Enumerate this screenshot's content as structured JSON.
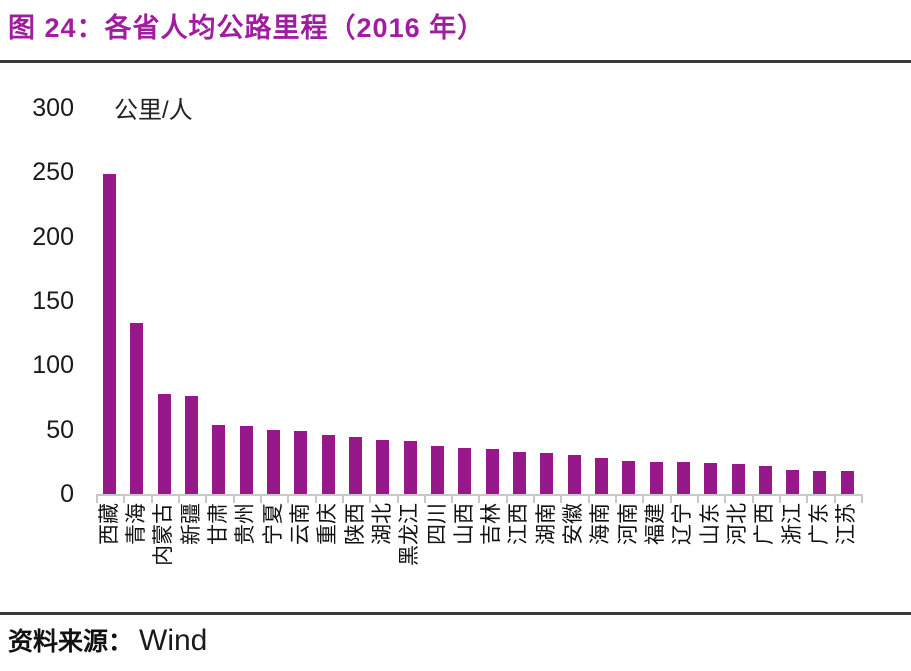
{
  "figure": {
    "title": "图 24：各省人均公路里程（2016 年）",
    "source_label": "资料来源：",
    "source_value": "Wind"
  },
  "colors": {
    "bar": "#96188A",
    "title": "#A01CA0",
    "divider": "#3a3a3a",
    "axis": "#c8c8c8",
    "text": "#1a1a1a"
  },
  "chart_data": {
    "type": "bar",
    "title": "各省人均公路里程（2016 年）",
    "ylabel": "公里/人",
    "xlabel": "",
    "ylim": [
      0,
      300
    ],
    "yticks": [
      0,
      50,
      100,
      150,
      200,
      250,
      300
    ],
    "grid": false,
    "legend": "none",
    "categories": [
      "西藏",
      "青海",
      "内蒙古",
      "新疆",
      "甘肃",
      "贵州",
      "宁夏",
      "云南",
      "重庆",
      "陕西",
      "湖北",
      "黑龙江",
      "四川",
      "山西",
      "吉林",
      "江西",
      "湖南",
      "安徽",
      "海南",
      "河南",
      "福建",
      "辽宁",
      "山东",
      "河北",
      "广西",
      "浙江",
      "广东",
      "江苏"
    ],
    "values": [
      249,
      133,
      78,
      76,
      54,
      53,
      50,
      49,
      46,
      44,
      42,
      41,
      37,
      36,
      35,
      33,
      32,
      30,
      28,
      26,
      25,
      25,
      24,
      23,
      22,
      19,
      18,
      18
    ]
  }
}
